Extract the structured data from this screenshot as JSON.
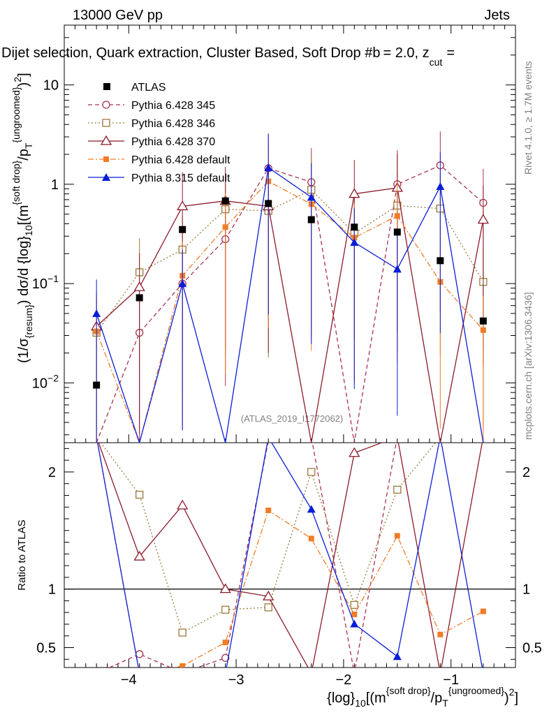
{
  "header": {
    "energy_label": "13000 GeV pp",
    "process_label": "Jets",
    "title": "Dijet selection, Quark extraction, Cluster Based, Soft Drop #b",
    "title_suffix": "= 2.0, z",
    "title_sub": "cut",
    "title_tail": "=",
    "side_rivet": "Rivet 4.1.0, ≥ 1.7M events",
    "side_mcplots": "mcplots.cern.ch [arXiv:1306.3436]",
    "watermark": "(ATLAS_2019_I1772062)"
  },
  "chart_data": {
    "type": "line",
    "main": {
      "ylabel": "(1/σ{resum}) dσ/d {log}10[(m{soft drop}/pT{ungroomed})2]",
      "yscale": "log",
      "ylim": [
        0.0025,
        40
      ],
      "yticks": [
        {
          "value": 0.01,
          "base": "10",
          "exp": "−2"
        },
        {
          "value": 0.1,
          "base": "10",
          "exp": "−1"
        },
        {
          "value": 1,
          "base": "1",
          "exp": ""
        },
        {
          "value": 10,
          "base": "10",
          "exp": ""
        }
      ]
    },
    "ratio": {
      "ylabel": "Ratio to ATLAS",
      "ylim": [
        0.33,
        2.25
      ],
      "yticks": [
        {
          "value": 0.5,
          "label": "0.5"
        },
        {
          "value": 1,
          "label": "1"
        },
        {
          "value": 2,
          "label": "2"
        }
      ],
      "reference_line": 1
    },
    "x": {
      "label": "{log}10[(m{soft drop}/pT{ungroomed})2]",
      "xlim": [
        -4.6,
        -0.4
      ],
      "ticks": [
        {
          "value": -4,
          "label": "−4"
        },
        {
          "value": -3,
          "label": "−3"
        },
        {
          "value": -2,
          "label": "−2"
        },
        {
          "value": -1,
          "label": "−1"
        }
      ],
      "bin_centers": [
        -4.3,
        -3.9,
        -3.5,
        -3.1,
        -2.7,
        -2.3,
        -1.9,
        -1.5,
        -1.1,
        -0.7
      ]
    },
    "data": {
      "name": "ATLAS",
      "color": "#000000",
      "values": [
        0.0095,
        0.072,
        0.35,
        0.68,
        0.64,
        0.44,
        0.37,
        0.33,
        0.17,
        0.042
      ]
    },
    "series": [
      {
        "name": "Pythia 6.428 345",
        "color": "#a83250",
        "marker": "open-circle",
        "dash": "6,4",
        "values": [
          0.0025,
          0.032,
          0.1,
          0.28,
          1.45,
          1.05,
          0.0025,
          1.0,
          1.55,
          0.65
        ]
      },
      {
        "name": "Pythia 6.428 346",
        "color": "#9b7a3a",
        "marker": "open-square",
        "dash": "2,3",
        "values": [
          0.032,
          0.13,
          0.22,
          0.56,
          0.54,
          0.88,
          0.32,
          0.61,
          0.57,
          0.104
        ]
      },
      {
        "name": "Pythia 6.428 370",
        "color": "#8b1a2a",
        "marker": "open-triangle",
        "dash": "",
        "values": [
          0.037,
          0.092,
          0.6,
          0.68,
          0.6,
          0.0025,
          0.8,
          0.92,
          0.0025,
          0.44
        ]
      },
      {
        "name": "Pythia 6.428 default",
        "color": "#f07c28",
        "marker": "filled-square",
        "dash": "8,3,2,3",
        "values": [
          0.033,
          0.0025,
          0.12,
          0.37,
          1.07,
          0.63,
          0.29,
          0.48,
          0.104,
          0.034
        ]
      },
      {
        "name": "Pythia 8.315 default",
        "color": "#0a1ed8",
        "marker": "filled-triangle",
        "dash": "",
        "values": [
          0.05,
          0.0025,
          0.1,
          0.0025,
          1.47,
          0.74,
          0.26,
          0.14,
          0.95,
          0.0025
        ]
      }
    ]
  }
}
